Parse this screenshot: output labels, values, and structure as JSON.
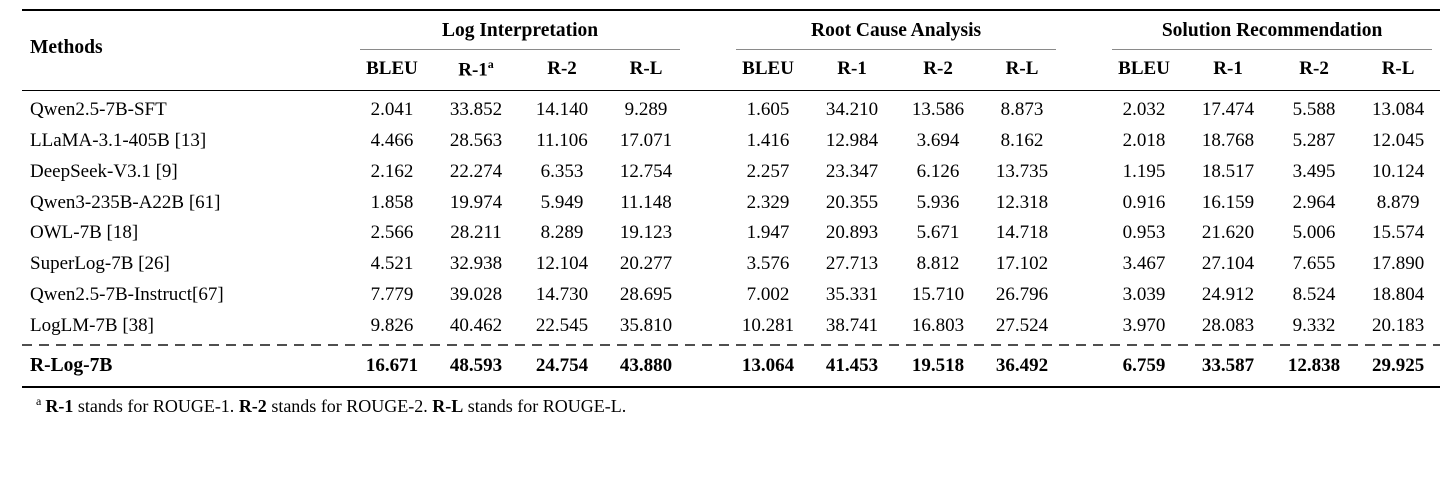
{
  "table": {
    "methods_label": "Methods",
    "footnote_marker": "a",
    "groups": [
      {
        "label": "Log Interpretation",
        "columns": [
          "BLEU",
          "R-1",
          "R-2",
          "R-L"
        ]
      },
      {
        "label": "Root Cause Analysis",
        "columns": [
          "BLEU",
          "R-1",
          "R-2",
          "R-L"
        ]
      },
      {
        "label": "Solution Recommendation",
        "columns": [
          "BLEU",
          "R-1",
          "R-2",
          "R-L"
        ]
      }
    ],
    "rows": [
      {
        "method": "Qwen2.5-7B-SFT",
        "values": [
          "2.041",
          "33.852",
          "14.140",
          "9.289",
          "1.605",
          "34.210",
          "13.586",
          "8.873",
          "2.032",
          "17.474",
          "5.588",
          "13.084"
        ]
      },
      {
        "method": "LLaMA-3.1-405B [13]",
        "values": [
          "4.466",
          "28.563",
          "11.106",
          "17.071",
          "1.416",
          "12.984",
          "3.694",
          "8.162",
          "2.018",
          "18.768",
          "5.287",
          "12.045"
        ]
      },
      {
        "method": "DeepSeek-V3.1 [9]",
        "values": [
          "2.162",
          "22.274",
          "6.353",
          "12.754",
          "2.257",
          "23.347",
          "6.126",
          "13.735",
          "1.195",
          "18.517",
          "3.495",
          "10.124"
        ]
      },
      {
        "method": "Qwen3-235B-A22B [61]",
        "values": [
          "1.858",
          "19.974",
          "5.949",
          "11.148",
          "2.329",
          "20.355",
          "5.936",
          "12.318",
          "0.916",
          "16.159",
          "2.964",
          "8.879"
        ]
      },
      {
        "method": "OWL-7B [18]",
        "values": [
          "2.566",
          "28.211",
          "8.289",
          "19.123",
          "1.947",
          "20.893",
          "5.671",
          "14.718",
          "0.953",
          "21.620",
          "5.006",
          "15.574"
        ]
      },
      {
        "method": "SuperLog-7B [26]",
        "values": [
          "4.521",
          "32.938",
          "12.104",
          "20.277",
          "3.576",
          "27.713",
          "8.812",
          "17.102",
          "3.467",
          "27.104",
          "7.655",
          "17.890"
        ]
      },
      {
        "method": "Qwen2.5-7B-Instruct[67]",
        "values": [
          "7.779",
          "39.028",
          "14.730",
          "28.695",
          "7.002",
          "35.331",
          "15.710",
          "26.796",
          "3.039",
          "24.912",
          "8.524",
          "18.804"
        ]
      },
      {
        "method": "LogLM-7B [38]",
        "values": [
          "9.826",
          "40.462",
          "22.545",
          "35.810",
          "10.281",
          "38.741",
          "16.803",
          "27.524",
          "3.970",
          "28.083",
          "9.332",
          "20.183"
        ]
      }
    ],
    "highlight_row": {
      "method": "R-Log-7B",
      "values": [
        "16.671",
        "48.593",
        "24.754",
        "43.880",
        "13.064",
        "41.453",
        "19.518",
        "36.492",
        "6.759",
        "33.587",
        "12.838",
        "29.925"
      ]
    },
    "footnote": {
      "marker": "a",
      "b1": "R-1",
      "t1": " stands for ROUGE-1. ",
      "b2": "R-2",
      "t2": " stands for ROUGE-2. ",
      "b3": "R-L",
      "t3": " stands for ROUGE-L."
    }
  },
  "colors": {
    "text": "#000000",
    "rule": "#000000",
    "cmidrule": "#8a8a8a",
    "dashed_rule": "#4f4f4f",
    "background": "#ffffff"
  }
}
